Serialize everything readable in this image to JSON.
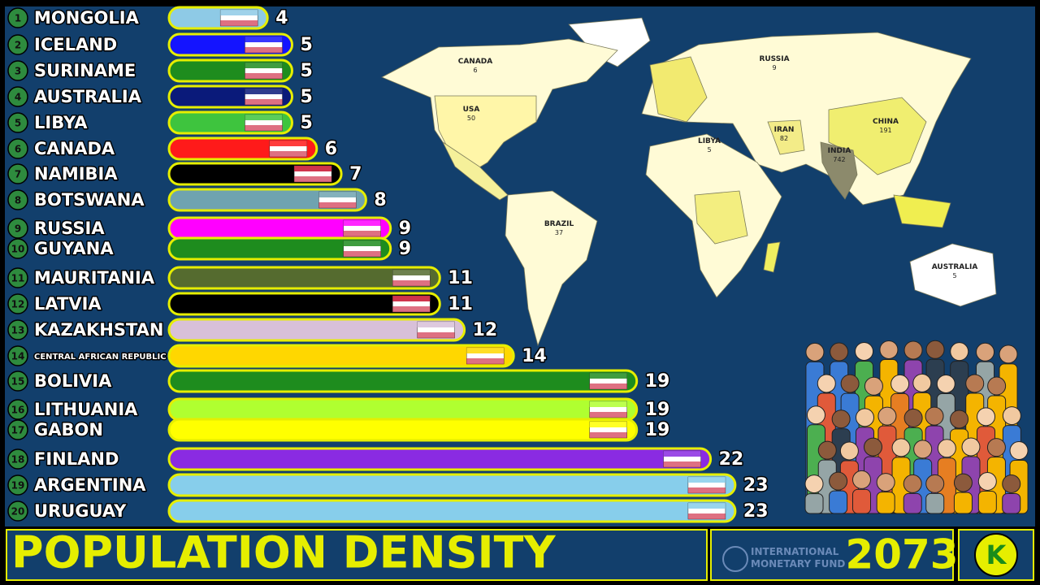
{
  "chart_data": {
    "type": "bar",
    "title": "POPULATION DENSITY",
    "year": 2073,
    "source": [
      "INTERNATIONAL",
      "MONETARY FUND"
    ],
    "logo": "K",
    "ranks": [
      1,
      2,
      3,
      4,
      5,
      6,
      7,
      8,
      9,
      10,
      11,
      12,
      13,
      14,
      15,
      16,
      17,
      18,
      19,
      20
    ],
    "categories": [
      "MONGOLIA",
      "ICELAND",
      "SURINAME",
      "AUSTRALIA",
      "LIBYA",
      "CANADA",
      "NAMIBIA",
      "BOTSWANA",
      "RUSSIA",
      "GUYANA",
      "MAURITANIA",
      "LATVIA",
      "KAZAKHSTAN",
      "CENTRAL AFRICAN REPUBLIC",
      "BOLIVIA",
      "LITHUANIA",
      "GABON",
      "FINLAND",
      "ARGENTINA",
      "URUGUAY"
    ],
    "values": [
      4,
      5,
      5,
      5,
      5,
      6,
      7,
      8,
      9,
      9,
      11,
      11,
      12,
      14,
      19,
      19,
      19,
      22,
      23,
      23
    ],
    "colors": [
      "#8ecae6",
      "#1414ff",
      "#1e8c1e",
      "#0a1a7a",
      "#3ec43e",
      "#ff1a1a",
      "#000000",
      "#6fa3b0",
      "#ff00ff",
      "#1e8c1e",
      "#556b2f",
      "#000000",
      "#d8c0d8",
      "#ffd700",
      "#1e8c1e",
      "#b0ff30",
      "#ffff00",
      "#8a2be2",
      "#87ceeb",
      "#87ceeb"
    ]
  },
  "map": {
    "labels": [
      {
        "name": "CANADA",
        "value": 6
      },
      {
        "name": "USA",
        "value": 50
      },
      {
        "name": "RUSSIA",
        "value": 9
      },
      {
        "name": "CHINA",
        "value": 191
      },
      {
        "name": "INDIA",
        "value": 742
      },
      {
        "name": "IRAN",
        "value": 82
      },
      {
        "name": "LIBYA",
        "value": 5
      },
      {
        "name": "BRAZIL",
        "value": 37
      },
      {
        "name": "AUSTRALIA",
        "value": 5
      }
    ]
  }
}
